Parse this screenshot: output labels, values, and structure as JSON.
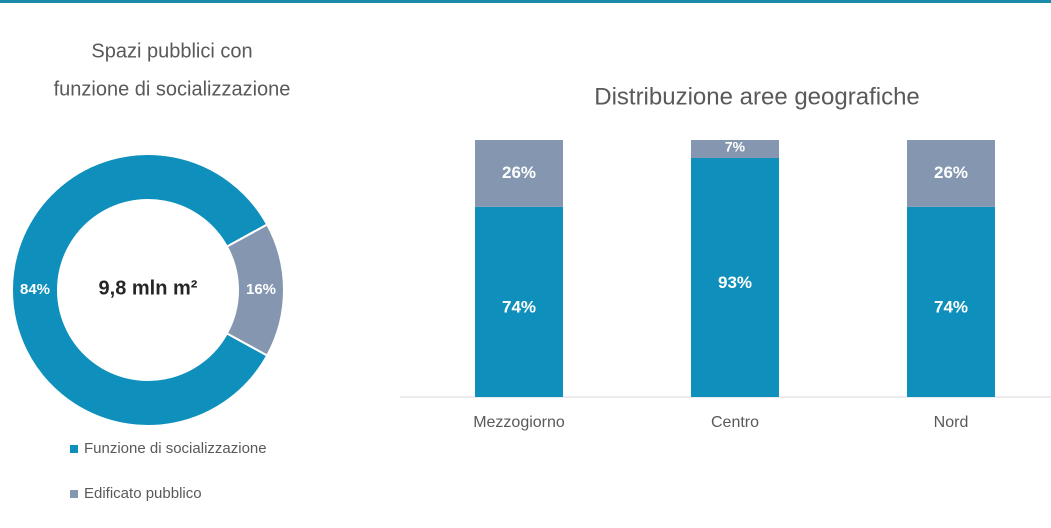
{
  "chart_data": [
    {
      "type": "donut",
      "title": [
        "Spazi pubblici con",
        "funzione di socializzazione"
      ],
      "center_label": "9,8 mln m²",
      "categories": [
        "Funzione di socializzazione",
        "Edificato pubblico"
      ],
      "values": [
        84,
        16
      ],
      "value_labels": [
        "84%",
        "16%"
      ],
      "colors": [
        "#0f90bc",
        "#8597b0"
      ],
      "legend": "bottom"
    },
    {
      "type": "stacked_bar",
      "title": "Distribuzione aree geografiche",
      "categories": [
        "Mezzogiorno",
        "Centro",
        "Nord"
      ],
      "series": [
        {
          "color": "#0f90bc",
          "values": [
            74,
            93,
            74
          ],
          "value_labels": [
            "74%",
            "93%",
            "74%"
          ]
        },
        {
          "color": "#8597b0",
          "values": [
            26,
            7,
            26
          ],
          "value_labels": [
            "26%",
            "7%",
            "26%"
          ]
        }
      ],
      "ylim": [
        0,
        100
      ]
    }
  ]
}
